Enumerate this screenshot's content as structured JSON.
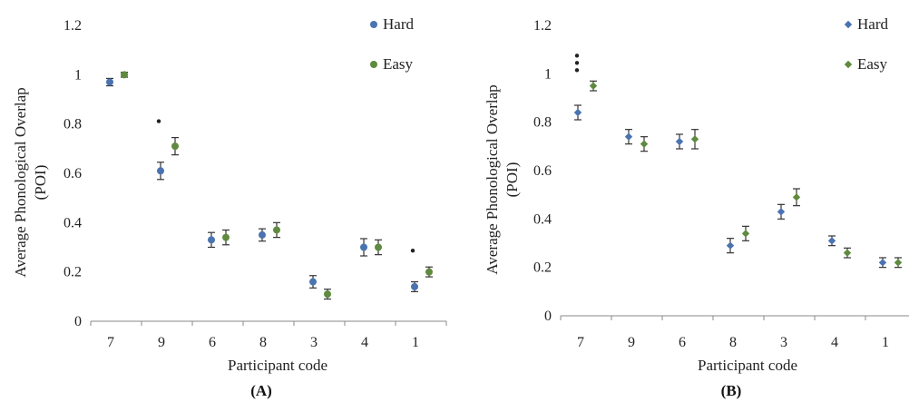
{
  "chart_data": [
    {
      "type": "scatter",
      "panel_label": "(A)",
      "xlabel": "Participant code",
      "ylabel": "Average Phonological Overlap (POI)",
      "ylim": [
        0,
        1.2
      ],
      "yticks": [
        "0",
        "0.2",
        "0.4",
        "0.6",
        "0.8",
        "1",
        "1.2"
      ],
      "categories": [
        "7",
        "9",
        "6",
        "8",
        "3",
        "4",
        "1"
      ],
      "series": [
        {
          "name": "Hard",
          "color": "#4a73b0",
          "marker": "circle",
          "values": [
            0.97,
            0.61,
            0.33,
            0.35,
            0.16,
            0.3,
            0.14
          ],
          "errors": [
            0.015,
            0.035,
            0.03,
            0.025,
            0.025,
            0.035,
            0.02
          ]
        },
        {
          "name": "Easy",
          "color": "#5f8a3f",
          "marker": "circle",
          "values": [
            1.0,
            0.71,
            0.34,
            0.37,
            0.11,
            0.3,
            0.2
          ],
          "errors": [
            0.01,
            0.035,
            0.03,
            0.03,
            0.02,
            0.03,
            0.02
          ]
        }
      ],
      "significance": [
        {
          "category": "9",
          "label": "*"
        },
        {
          "category": "1",
          "label": "*"
        }
      ],
      "legend_position": "top-right",
      "grid": false
    },
    {
      "type": "scatter",
      "panel_label": "(B)",
      "xlabel": "Participant code",
      "ylabel": "Average Phonological Overlap (POI)",
      "ylim": [
        0,
        1.2
      ],
      "yticks": [
        "0",
        "0.2",
        "0.4",
        "0.6",
        "0.8",
        "1",
        "1.2"
      ],
      "categories": [
        "7",
        "9",
        "6",
        "8",
        "3",
        "4",
        "1"
      ],
      "series": [
        {
          "name": "Hard",
          "color": "#4a73b0",
          "marker": "diamond",
          "values": [
            0.84,
            0.74,
            0.72,
            0.29,
            0.43,
            0.31,
            0.22
          ],
          "errors": [
            0.03,
            0.03,
            0.03,
            0.03,
            0.03,
            0.02,
            0.02
          ]
        },
        {
          "name": "Easy",
          "color": "#5f8a3f",
          "marker": "diamond",
          "values": [
            0.95,
            0.71,
            0.73,
            0.34,
            0.49,
            0.26,
            0.22
          ],
          "errors": [
            0.02,
            0.03,
            0.04,
            0.03,
            0.035,
            0.02,
            0.02
          ]
        }
      ],
      "significance": [
        {
          "category": "7",
          "label": "***"
        }
      ],
      "legend_position": "top-right",
      "grid": false
    }
  ]
}
